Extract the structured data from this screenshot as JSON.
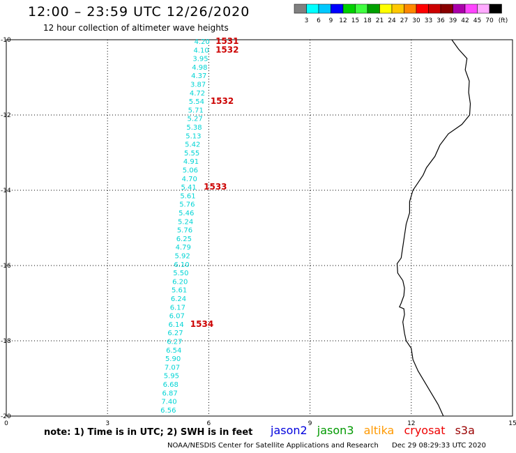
{
  "header": {
    "title": "12:00 – 23:59 UTC 12/26/2020",
    "subtitle": "12 hour collection of altimeter wave heights"
  },
  "color_scale": {
    "unit": "(ft)",
    "ticks": [
      "3",
      "6",
      "9",
      "12",
      "15",
      "18",
      "21",
      "24",
      "27",
      "30",
      "33",
      "36",
      "39",
      "42",
      "45",
      "70"
    ],
    "colors": [
      "#808080",
      "#00ffff",
      "#00c8ff",
      "#0000ff",
      "#00d000",
      "#40ff40",
      "#00a000",
      "#ffff00",
      "#ffc800",
      "#ff8800",
      "#ff0000",
      "#cc0000",
      "#880000",
      "#aa00aa",
      "#ff44ff",
      "#ffaaff",
      "#000000"
    ]
  },
  "map": {
    "x_ticks": [
      "0",
      "3",
      "6",
      "9",
      "12",
      "15"
    ],
    "y_ticks": [
      "-10",
      "-12",
      "-14",
      "-16",
      "-18",
      "-20"
    ],
    "x_range": [
      0,
      15
    ],
    "y_range": [
      -20,
      -10
    ],
    "coast": [
      [
        13.2,
        -10.0
      ],
      [
        13.4,
        -10.25
      ],
      [
        13.65,
        -10.5
      ],
      [
        13.6,
        -10.8
      ],
      [
        13.72,
        -11.1
      ],
      [
        13.7,
        -11.4
      ],
      [
        13.75,
        -11.7
      ],
      [
        13.73,
        -12.0
      ],
      [
        13.5,
        -12.25
      ],
      [
        13.1,
        -12.5
      ],
      [
        12.85,
        -12.8
      ],
      [
        12.7,
        -13.1
      ],
      [
        12.45,
        -13.4
      ],
      [
        12.35,
        -13.6
      ],
      [
        12.2,
        -13.8
      ],
      [
        12.05,
        -14.0
      ],
      [
        11.95,
        -14.3
      ],
      [
        11.95,
        -14.6
      ],
      [
        11.85,
        -14.9
      ],
      [
        11.8,
        -15.2
      ],
      [
        11.75,
        -15.5
      ],
      [
        11.7,
        -15.8
      ],
      [
        11.58,
        -15.95
      ],
      [
        11.6,
        -16.2
      ],
      [
        11.75,
        -16.4
      ],
      [
        11.8,
        -16.6
      ],
      [
        11.78,
        -16.8
      ],
      [
        11.7,
        -17.0
      ],
      [
        11.65,
        -17.1
      ],
      [
        11.78,
        -17.15
      ],
      [
        11.8,
        -17.3
      ],
      [
        11.75,
        -17.5
      ],
      [
        11.8,
        -17.8
      ],
      [
        11.85,
        -18.0
      ],
      [
        12.0,
        -18.2
      ],
      [
        12.05,
        -18.5
      ],
      [
        12.2,
        -18.8
      ],
      [
        12.4,
        -19.1
      ],
      [
        12.6,
        -19.4
      ],
      [
        12.8,
        -19.7
      ],
      [
        12.95,
        -20.0
      ]
    ],
    "track_lon_start": 5.8,
    "track_lon_end": 4.8,
    "wave_heights": [
      "4.20",
      "4.10",
      "3.95",
      "4.98",
      "4.37",
      "3.87",
      "4.72",
      "5.54",
      "5.71",
      "5.27",
      "5.38",
      "5.13",
      "5.42",
      "5.55",
      "4.91",
      "5.06",
      "4.70",
      "5.41",
      "5.61",
      "5.76",
      "5.46",
      "5.24",
      "5.76",
      "6.25",
      "4.79",
      "5.92",
      "6.10",
      "5.50",
      "6.20",
      "5.61",
      "6.24",
      "6.17",
      "6.07",
      "6.14",
      "6.27",
      "6.27",
      "6.54",
      "5.90",
      "7.07",
      "5.95",
      "6.68",
      "6.87",
      "7.40",
      "6.56"
    ],
    "wave_color": "#00d4d4",
    "pass_color": "#cc0000",
    "passes": [
      {
        "label": "1531",
        "row": 0,
        "lon": 6.2
      },
      {
        "label": "1532",
        "row": 1,
        "lon": 6.2
      },
      {
        "label": "1532",
        "row": 7,
        "lon": 6.05
      },
      {
        "label": "1533",
        "row": 17,
        "lon": 5.85
      },
      {
        "label": "1534",
        "row": 33,
        "lon": 5.45
      }
    ]
  },
  "note": "note:  1) Time is in UTC;  2) SWH is in feet",
  "satellites": [
    {
      "name": "jason2",
      "color": "#0000dd"
    },
    {
      "name": "jason3",
      "color": "#009900"
    },
    {
      "name": "altika",
      "color": "#ff9900"
    },
    {
      "name": "cryosat",
      "color": "#ee0000"
    },
    {
      "name": "s3a",
      "color": "#990000"
    }
  ],
  "footer": {
    "credit": "NOAA/NESDIS Center for Satellite Applications and Research",
    "timestamp": "Dec 29 08:29:33 UTC 2020"
  }
}
